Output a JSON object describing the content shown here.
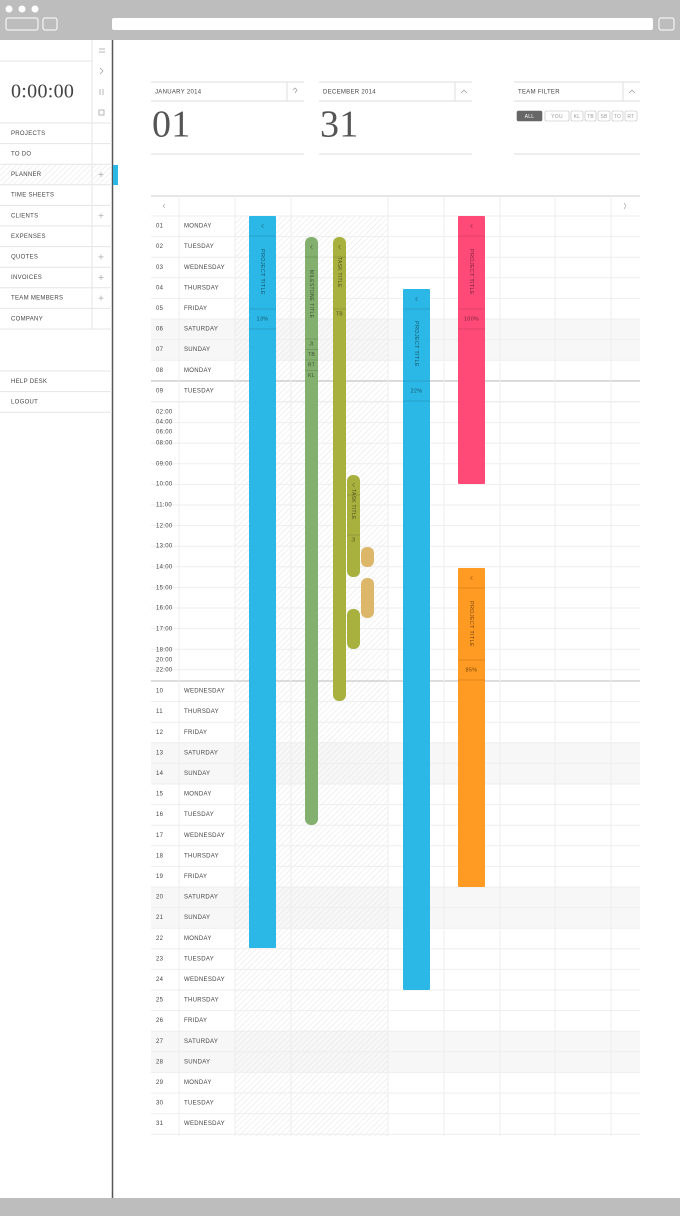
{
  "sidebar": {
    "timer": "0:00:00",
    "menu": [
      "PROJECTS",
      "TO DO",
      "PLANNER",
      "TIME SHEETS",
      "CLIENTS",
      "EXPENSES",
      "QUOTES",
      "INVOICES",
      "TEAM MEMBERS",
      "COMPANY"
    ],
    "footer_menu": [
      "HELP DESK",
      "LOGOUT"
    ]
  },
  "date_from": {
    "month": "JANUARY 2014",
    "day": "01"
  },
  "date_to": {
    "month": "DECEMBER 2014",
    "day": "31"
  },
  "team_filter": {
    "title": "TEAM FILTER",
    "options": [
      "ALL",
      "YOU",
      "KL",
      "TB",
      "SB",
      "TO",
      "RT"
    ]
  },
  "calendar": {
    "days": [
      {
        "num": "01",
        "name": "MONDAY"
      },
      {
        "num": "02",
        "name": "TUESDAY"
      },
      {
        "num": "03",
        "name": "WEDNESDAY"
      },
      {
        "num": "04",
        "name": "THURSDAY"
      },
      {
        "num": "05",
        "name": "FRIDAY"
      },
      {
        "num": "06",
        "name": "SATURDAY"
      },
      {
        "num": "07",
        "name": "SUNDAY"
      },
      {
        "num": "08",
        "name": "MONDAY"
      },
      {
        "num": "09",
        "name": "TUESDAY"
      },
      {
        "num": "10",
        "name": "WEDNESDAY"
      },
      {
        "num": "11",
        "name": "THURSDAY"
      },
      {
        "num": "12",
        "name": "FRIDAY"
      },
      {
        "num": "13",
        "name": "SATURDAY"
      },
      {
        "num": "14",
        "name": "SUNDAY"
      },
      {
        "num": "15",
        "name": "MONDAY"
      },
      {
        "num": "16",
        "name": "TUESDAY"
      },
      {
        "num": "17",
        "name": "WEDNESDAY"
      },
      {
        "num": "18",
        "name": "THURSDAY"
      },
      {
        "num": "19",
        "name": "FRIDAY"
      },
      {
        "num": "20",
        "name": "SATURDAY"
      },
      {
        "num": "21",
        "name": "SUNDAY"
      },
      {
        "num": "22",
        "name": "MONDAY"
      },
      {
        "num": "23",
        "name": "TUESDAY"
      },
      {
        "num": "24",
        "name": "WEDNESDAY"
      },
      {
        "num": "25",
        "name": "THURSDAY"
      },
      {
        "num": "26",
        "name": "FRIDAY"
      },
      {
        "num": "27",
        "name": "SATURDAY"
      },
      {
        "num": "28",
        "name": "SUNDAY"
      },
      {
        "num": "29",
        "name": "MONDAY"
      },
      {
        "num": "30",
        "name": "TUESDAY"
      },
      {
        "num": "31",
        "name": "WEDNESDAY"
      }
    ],
    "hours": [
      "02:00",
      "04:00",
      "06:00",
      "08:00",
      "09:00",
      "10:00",
      "11:00",
      "12:00",
      "13:00",
      "14:00",
      "15:00",
      "16:00",
      "17:00",
      "18:00",
      "20:00",
      "22:00"
    ],
    "bars": [
      {
        "title": "PROJECT TITLE",
        "progress": "13%"
      },
      {
        "title": "MILESTONE TITLE",
        "assignees": [
          "JI",
          "TB",
          "RT",
          "KL"
        ]
      },
      {
        "title": "TASK TITLE",
        "assignees": [
          "TB"
        ]
      },
      {
        "title": "TASK TITLE",
        "assignees": [
          "JI"
        ]
      },
      {
        "title": "PROJECT TITLE",
        "progress": "22%"
      },
      {
        "title": "PROJECT TITLE",
        "progress": "100%"
      },
      {
        "title": "PROJECT TITLE",
        "progress": "85%"
      }
    ]
  }
}
